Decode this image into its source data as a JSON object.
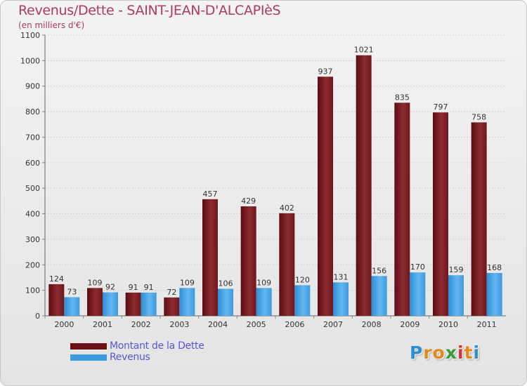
{
  "page": {
    "title": "Revenus/Dette - SAINT-JEAN-D'ALCAPIèS",
    "subtitle": "(en milliers d'€)"
  },
  "chart_data": {
    "type": "bar",
    "title": "Revenus/Dette - SAINT-JEAN-D'ALCAPIèS",
    "ylabel": "(en milliers d'€)",
    "xlabel": "",
    "categories": [
      "2000",
      "2001",
      "2002",
      "2003",
      "2004",
      "2005",
      "2006",
      "2007",
      "2008",
      "2009",
      "2010",
      "2011"
    ],
    "series": [
      {
        "name": "Montant de la Dette",
        "color": "#7a1f25",
        "values": [
          124,
          109,
          91,
          72,
          457,
          429,
          402,
          937,
          1021,
          835,
          797,
          758
        ]
      },
      {
        "name": "Revenus",
        "color": "#4aa3e4",
        "values": [
          73,
          92,
          91,
          109,
          106,
          109,
          120,
          131,
          156,
          170,
          159,
          168
        ]
      }
    ],
    "ylim": [
      0,
      1100
    ],
    "yticks": [
      0,
      100,
      200,
      300,
      400,
      500,
      600,
      700,
      800,
      900,
      1000,
      1100
    ],
    "grid": true,
    "legend": "bottom-left"
  },
  "legend": {
    "items": [
      {
        "label": "Montant de la Dette",
        "color": "#6b1015"
      },
      {
        "label": "Revenus",
        "color": "#3d9be0"
      }
    ]
  },
  "logo": {
    "letters": [
      "P",
      "r",
      "o",
      "x",
      "i",
      "t",
      "i"
    ],
    "colors": [
      "#2f8ecf",
      "#e08a1e",
      "#e08a1e",
      "#3a9a3a",
      "#d4333a",
      "#e08a1e",
      "#2f8ecf"
    ]
  }
}
